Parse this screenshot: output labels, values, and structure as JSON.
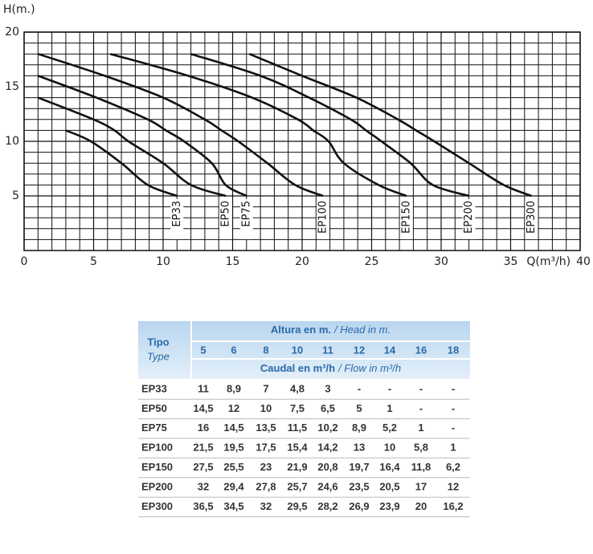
{
  "chart_data": {
    "type": "line",
    "y_label": "H(m.)",
    "x_label": "Q(m³/h)",
    "xlim": [
      0,
      40
    ],
    "xticks": [
      0,
      5,
      10,
      15,
      20,
      25,
      30,
      35,
      40
    ],
    "ylim": [
      0,
      20
    ],
    "yticks": [
      5,
      10,
      15,
      20
    ],
    "grid": true,
    "series": [
      {
        "name": "EP33",
        "color": "#111111",
        "x": [
          11,
          8.9,
          7,
          4.8,
          3
        ],
        "values": [
          5,
          6,
          8,
          10,
          11
        ]
      },
      {
        "name": "EP50",
        "color": "#111111",
        "x": [
          14.5,
          12,
          10,
          7.5,
          6.5,
          5,
          1
        ],
        "values": [
          5,
          6,
          8,
          10,
          11,
          12,
          14
        ]
      },
      {
        "name": "EP75",
        "color": "#111111",
        "x": [
          16,
          14.5,
          13.5,
          11.5,
          10.2,
          8.9,
          5.2,
          1
        ],
        "values": [
          5,
          6,
          8,
          10,
          11,
          12,
          14,
          16
        ]
      },
      {
        "name": "EP100",
        "color": "#111111",
        "x": [
          21.5,
          19.5,
          17.5,
          15.4,
          14.2,
          13,
          10,
          5.8,
          1
        ],
        "values": [
          5,
          6,
          8,
          10,
          11,
          12,
          14,
          16,
          18
        ]
      },
      {
        "name": "EP150",
        "color": "#111111",
        "x": [
          27.5,
          25.5,
          23,
          21.9,
          20.8,
          19.7,
          16.4,
          11.8,
          6.2
        ],
        "values": [
          5,
          6,
          8,
          10,
          11,
          12,
          14,
          16,
          18
        ]
      },
      {
        "name": "EP200",
        "color": "#111111",
        "x": [
          32,
          29.4,
          27.8,
          25.7,
          24.6,
          23.5,
          20.5,
          17,
          12
        ],
        "values": [
          5,
          6,
          8,
          10,
          11,
          12,
          14,
          16,
          18
        ]
      },
      {
        "name": "EP300",
        "color": "#111111",
        "x": [
          36.5,
          34.5,
          32,
          29.5,
          28.2,
          26.9,
          23.9,
          20,
          16.2
        ],
        "values": [
          5,
          6,
          8,
          10,
          11,
          12,
          14,
          16,
          18
        ]
      }
    ]
  },
  "table": {
    "header": {
      "type": "Tipo",
      "type_en": "Type",
      "head": "Altura en m.",
      "head_en": "/ Head in m.",
      "flow": "Caudal en m³/h",
      "flow_en": "/ Flow in m³/h",
      "columns": [
        "5",
        "6",
        "8",
        "10",
        "11",
        "12",
        "14",
        "16",
        "18"
      ]
    },
    "rows": [
      [
        "EP33",
        "11",
        "8,9",
        "7",
        "4,8",
        "3",
        "-",
        "-",
        "-",
        "-"
      ],
      [
        "EP50",
        "14,5",
        "12",
        "10",
        "7,5",
        "6,5",
        "5",
        "1",
        "-",
        "-"
      ],
      [
        "EP75",
        "16",
        "14,5",
        "13,5",
        "11,5",
        "10,2",
        "8,9",
        "5,2",
        "1",
        "-"
      ],
      [
        "EP100",
        "21,5",
        "19,5",
        "17,5",
        "15,4",
        "14,2",
        "13",
        "10",
        "5,8",
        "1"
      ],
      [
        "EP150",
        "27,5",
        "25,5",
        "23",
        "21,9",
        "20,8",
        "19,7",
        "16,4",
        "11,8",
        "6,2"
      ],
      [
        "EP200",
        "32",
        "29,4",
        "27,8",
        "25,7",
        "24,6",
        "23,5",
        "20,5",
        "17",
        "12"
      ],
      [
        "EP300",
        "36,5",
        "34,5",
        "32",
        "29,5",
        "28,2",
        "26,9",
        "23,9",
        "20",
        "16,2"
      ]
    ]
  }
}
